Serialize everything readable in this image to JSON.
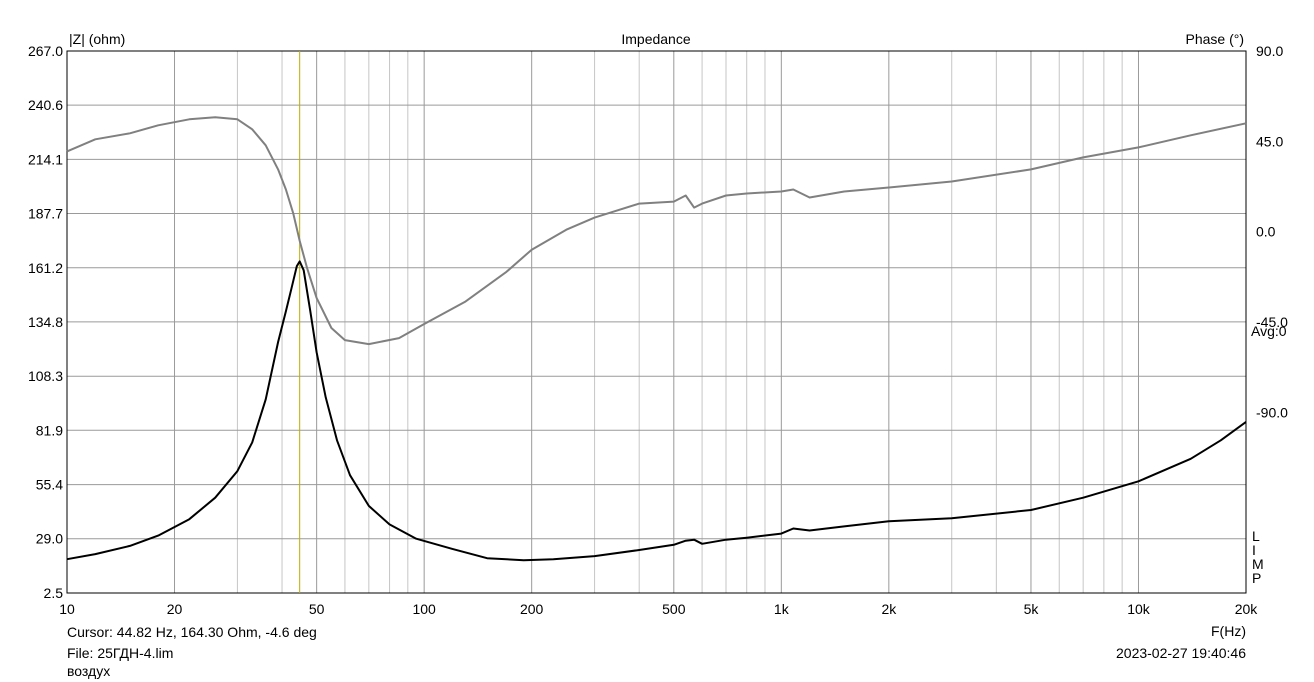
{
  "chart_data": {
    "type": "line",
    "title": "Impedance",
    "ylabel_left": "|Z| (ohm)",
    "ylabel_right": "Phase (°)",
    "xlabel": "F(Hz)",
    "xscale": "log",
    "xlim": [
      10,
      20000
    ],
    "ylim_left": [
      2.5,
      267.0
    ],
    "ylim_right": [
      -180,
      90
    ],
    "grid": true,
    "x_ticks": [
      10,
      20,
      50,
      100,
      200,
      500,
      1000,
      2000,
      5000,
      10000,
      20000
    ],
    "x_tick_labels": [
      "10",
      "20",
      "50",
      "100",
      "200",
      "500",
      "1k",
      "2k",
      "5k",
      "10k",
      "20k"
    ],
    "y_left_ticks": [
      267.0,
      240.6,
      214.1,
      187.7,
      161.2,
      134.8,
      108.3,
      81.9,
      55.4,
      29.0,
      2.5
    ],
    "y_left_tick_labels": [
      "267.0",
      "240.6",
      "214.1",
      "187.7",
      "161.2",
      "134.8",
      "108.3",
      "81.9",
      "55.4",
      "29.0",
      "2.5"
    ],
    "y_right_ticks": [
      90,
      45,
      0,
      -45,
      -90
    ],
    "y_right_tick_labels": [
      "90.0",
      "45.0",
      "0.0",
      "-45.0",
      "-90.0"
    ],
    "right_note": "Avg:0",
    "side_letters": "LIMP",
    "cursor_x": 44.82,
    "series": [
      {
        "axis": "left",
        "color": "#000000",
        "x": [
          10,
          12,
          15,
          18,
          22,
          26,
          30,
          33,
          36,
          39,
          41,
          42.5,
          44,
          44.82,
          46,
          48,
          50,
          53,
          57,
          62,
          70,
          80,
          95,
          120,
          150,
          190,
          230,
          300,
          400,
          500,
          540,
          570,
          600,
          700,
          800,
          1000,
          1080,
          1200,
          1500,
          2000,
          3000,
          5000,
          7000,
          10000,
          14000,
          17000,
          20000
        ],
        "y": [
          19.0,
          21.5,
          25.5,
          30.5,
          38.5,
          49.0,
          62.0,
          76.0,
          97.0,
          125.0,
          140.0,
          151.0,
          162.0,
          164.3,
          160.0,
          140.0,
          120.0,
          98.0,
          77.0,
          60.0,
          45.0,
          36.0,
          29.0,
          24.0,
          19.5,
          18.5,
          19.0,
          20.5,
          23.5,
          26.0,
          28.0,
          28.5,
          26.5,
          28.5,
          29.5,
          31.5,
          34.0,
          33.0,
          35.0,
          37.5,
          39.0,
          43.0,
          49.0,
          57.0,
          68.0,
          77.0,
          86.0
        ]
      },
      {
        "axis": "right",
        "color": "#808080",
        "x": [
          10,
          12,
          15,
          18,
          22,
          26,
          30,
          33,
          36,
          39,
          41,
          43,
          44.82,
          47,
          50,
          55,
          60,
          70,
          85,
          100,
          130,
          170,
          200,
          250,
          300,
          400,
          500,
          540,
          570,
          600,
          700,
          800,
          1000,
          1080,
          1200,
          1500,
          2000,
          3000,
          5000,
          7000,
          10000,
          14000,
          20000
        ],
        "y": [
          40.0,
          46.0,
          49.0,
          53.0,
          56.0,
          57.0,
          56.0,
          51.0,
          43.0,
          31.0,
          21.0,
          9.0,
          -4.6,
          -18.0,
          -33.0,
          -48.0,
          -54.0,
          -56.0,
          -53.0,
          -46.0,
          -35.0,
          -20.0,
          -9.0,
          1.0,
          7.0,
          14.0,
          15.0,
          18.0,
          12.0,
          14.0,
          18.0,
          19.0,
          20.0,
          21.0,
          17.0,
          20.0,
          22.0,
          25.0,
          31.0,
          37.0,
          42.0,
          48.0,
          54.0
        ]
      }
    ]
  },
  "footer": {
    "cursor": "Cursor: 44.82 Hz, 164.30 Ohm, -4.6 deg",
    "file": "File: 25ГДН-4.lim",
    "note": "воздух",
    "datetime": "2023-02-27 19:40:46"
  }
}
